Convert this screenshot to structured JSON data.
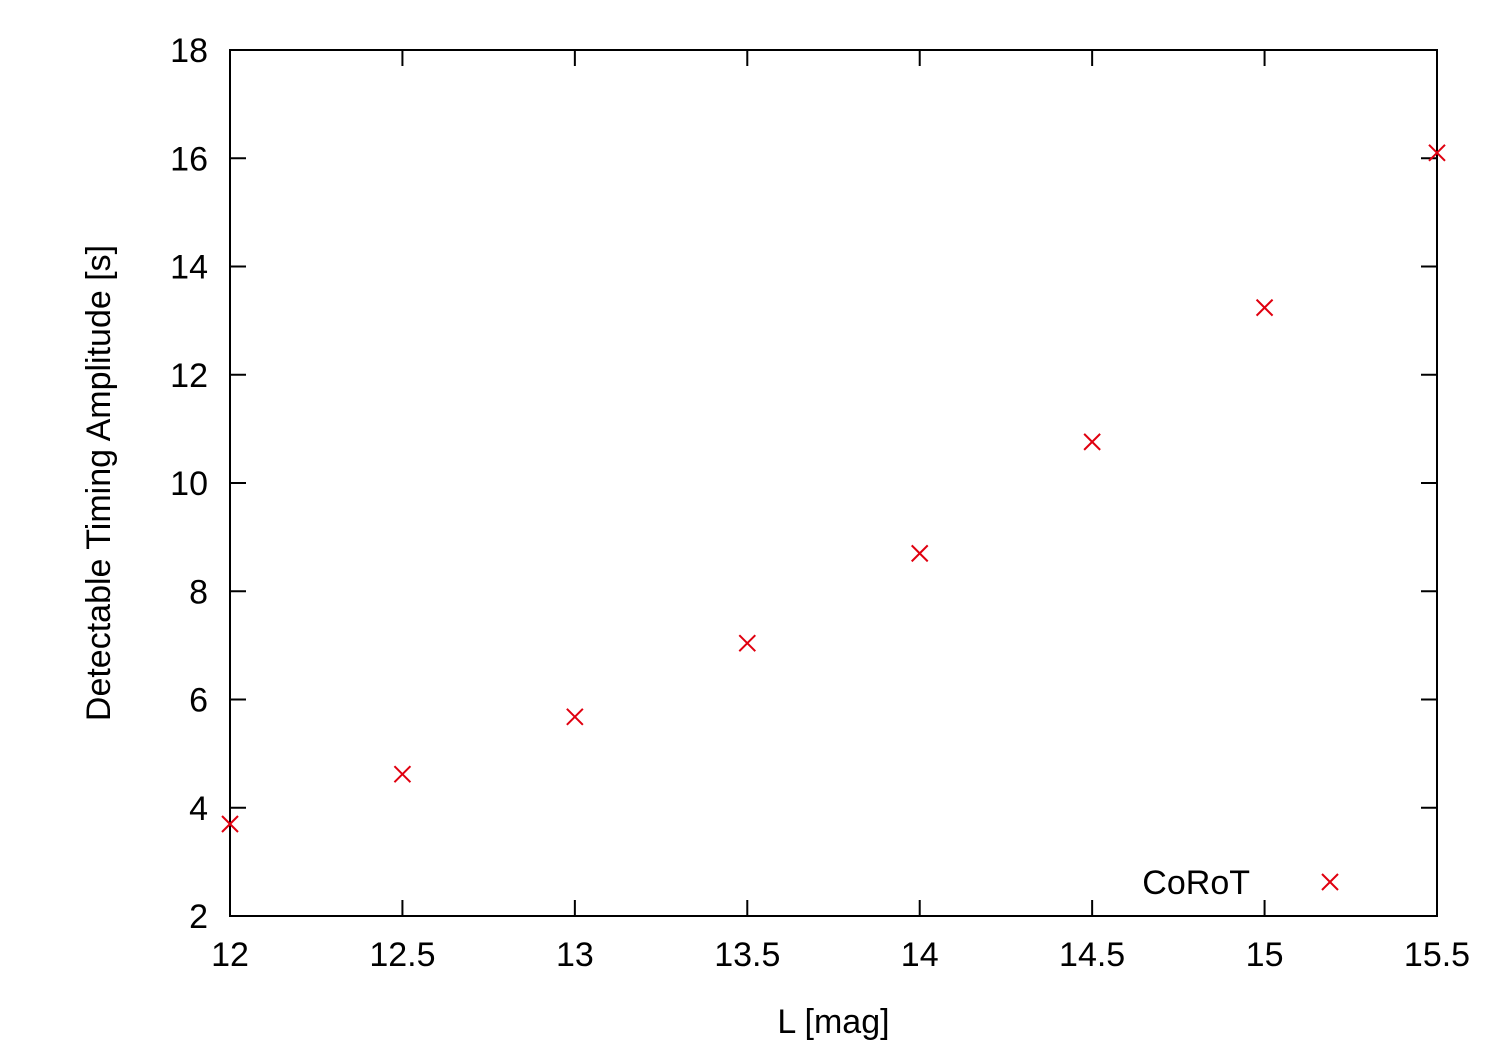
{
  "chart_data": {
    "type": "scatter",
    "title": "",
    "xlabel": "L [mag]",
    "ylabel": "Detectable Timing Amplitude [s]",
    "xlim": [
      12,
      15.5
    ],
    "ylim": [
      2,
      18
    ],
    "xticks": [
      12,
      12.5,
      13,
      13.5,
      14,
      14.5,
      15,
      15.5
    ],
    "xtick_labels": [
      "12",
      "12.5",
      "13",
      "13.5",
      "14",
      "14.5",
      "15",
      "15.5"
    ],
    "yticks": [
      2,
      4,
      6,
      8,
      10,
      12,
      14,
      16,
      18
    ],
    "ytick_labels": [
      "2",
      "4",
      "6",
      "8",
      "10",
      "12",
      "14",
      "16",
      "18"
    ],
    "grid": false,
    "legend_position": "bottom-right",
    "series": [
      {
        "name": "CoRoT",
        "color": "#e0000f",
        "marker": "x",
        "x": [
          12,
          12.5,
          13,
          13.5,
          14,
          14.5,
          15,
          15.5
        ],
        "y": [
          3.7,
          4.62,
          5.68,
          7.04,
          8.7,
          10.76,
          13.24,
          16.1
        ]
      }
    ]
  }
}
